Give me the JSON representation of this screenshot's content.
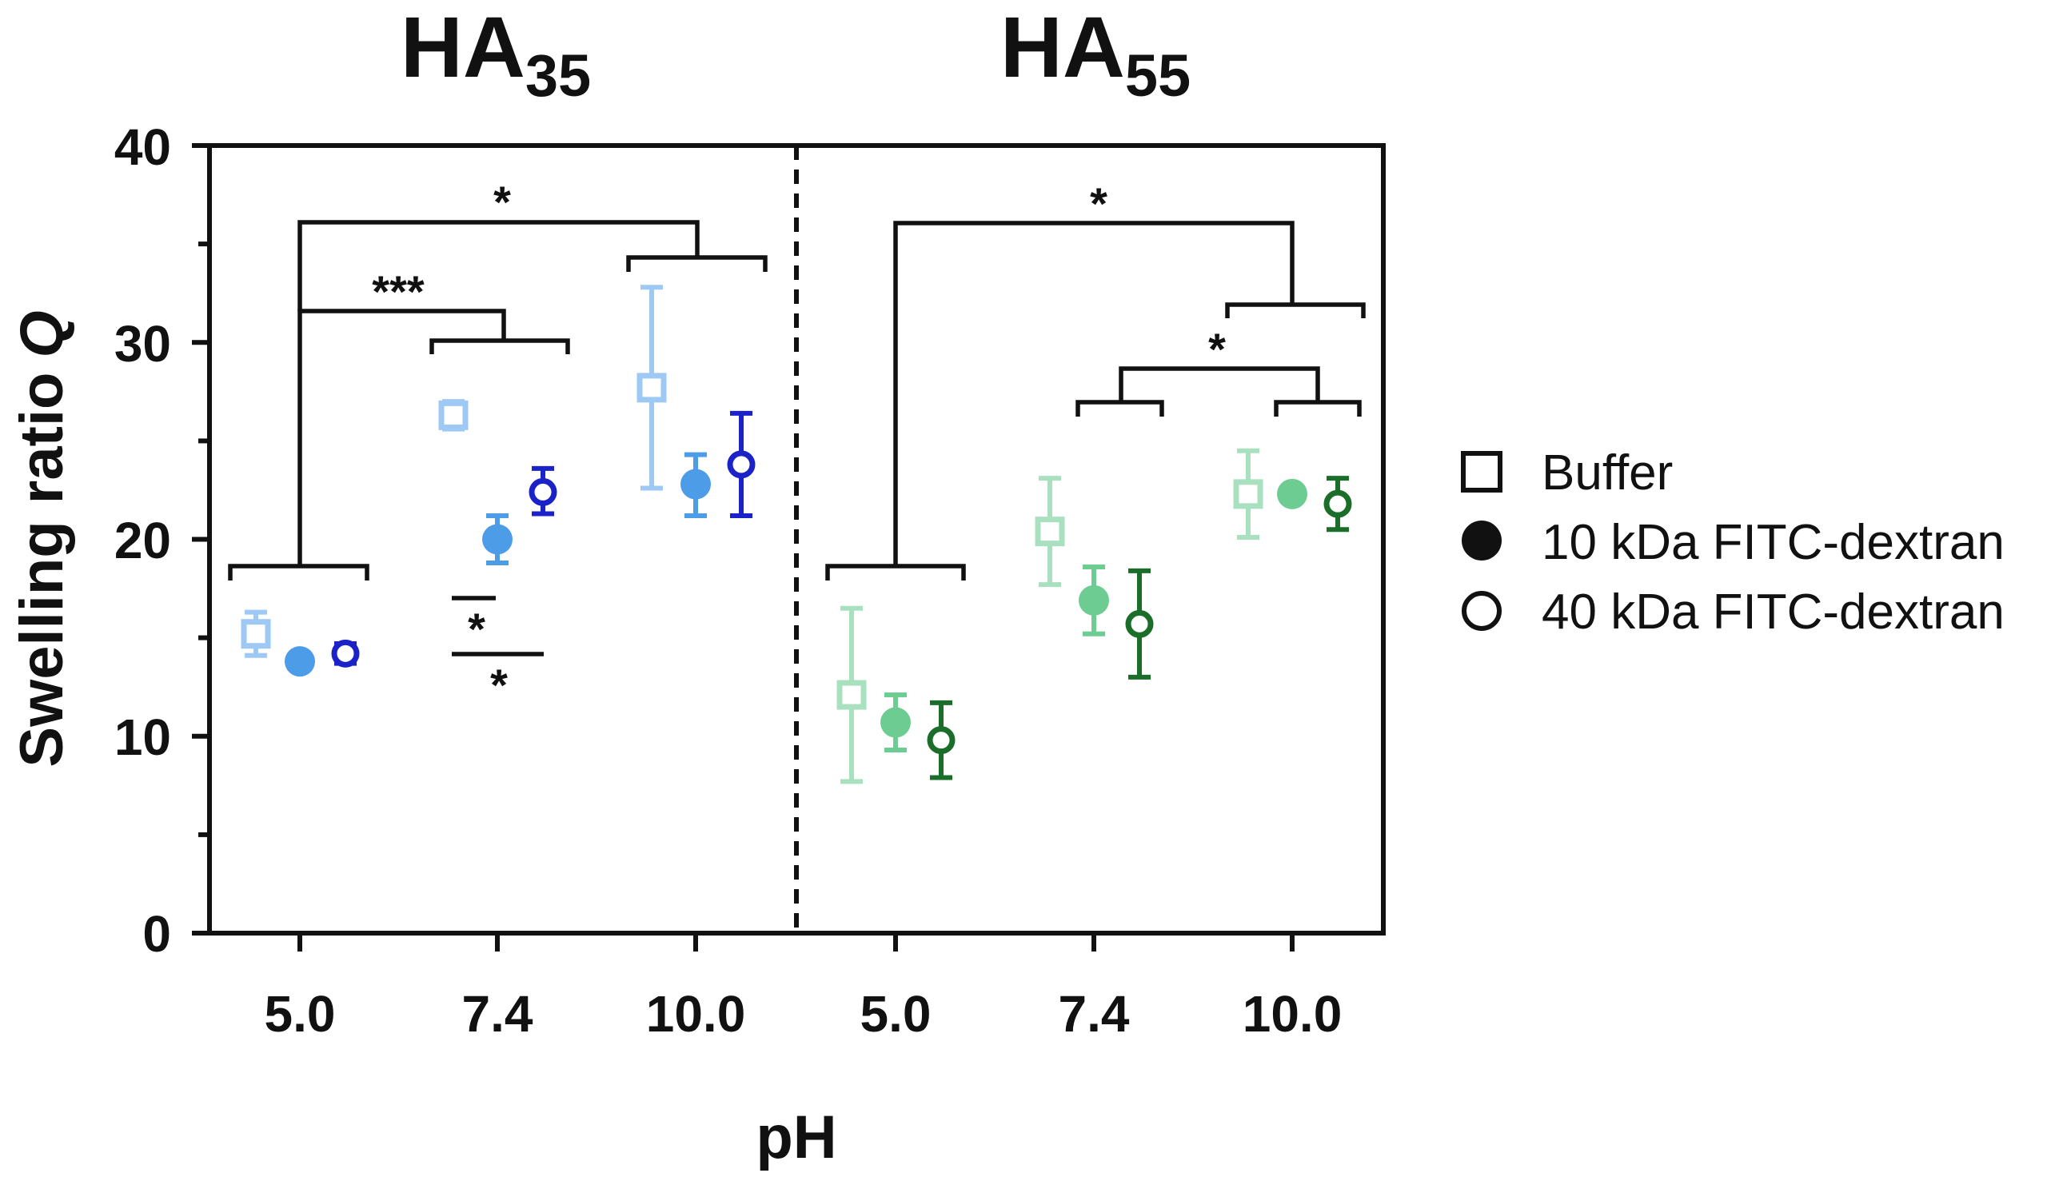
{
  "chart_data": {
    "type": "scatter",
    "ylabel": "Swelling ratio",
    "ylabel_var": "Q",
    "xlabel": "pH",
    "ylim": [
      0,
      40
    ],
    "y_ticks": [
      "0",
      "10",
      "20",
      "30",
      "40"
    ],
    "x_categories": [
      "5.0",
      "7.4",
      "10.0",
      "5.0",
      "7.4",
      "10.0"
    ],
    "panels": [
      {
        "title": "HA",
        "subscript": "35"
      },
      {
        "title": "HA",
        "subscript": "55"
      }
    ],
    "legend": {
      "placement": "right",
      "entries": [
        {
          "label": "Buffer",
          "marker": "open-square"
        },
        {
          "label": "10 kDa FITC-dextran",
          "marker": "filled-circle"
        },
        {
          "label": "40 kDa FITC-dextran",
          "marker": "open-circle"
        }
      ]
    },
    "series": [
      {
        "panel": "HA35",
        "pH": "5.0",
        "condition": "Buffer",
        "marker": "open-square",
        "color": "#9ec9f5",
        "mean": 15.2,
        "err_low": 14.1,
        "err_high": 16.3
      },
      {
        "panel": "HA35",
        "pH": "5.0",
        "condition": "10 kDa FITC-dextran",
        "marker": "filled-circle",
        "color": "#4d9ce8",
        "mean": 13.8,
        "err_low": 13.5,
        "err_high": 14.1
      },
      {
        "panel": "HA35",
        "pH": "5.0",
        "condition": "40 kDa FITC-dextran",
        "marker": "open-circle",
        "color": "#1a22c8",
        "mean": 14.2,
        "err_low": 13.7,
        "err_high": 14.7
      },
      {
        "panel": "HA35",
        "pH": "7.4",
        "condition": "Buffer",
        "marker": "open-square",
        "color": "#9ec9f5",
        "mean": 26.3,
        "err_low": 25.6,
        "err_high": 27.0
      },
      {
        "panel": "HA35",
        "pH": "7.4",
        "condition": "10 kDa FITC-dextran",
        "marker": "filled-circle",
        "color": "#4d9ce8",
        "mean": 20.0,
        "err_low": 18.8,
        "err_high": 21.2
      },
      {
        "panel": "HA35",
        "pH": "7.4",
        "condition": "40 kDa FITC-dextran",
        "marker": "open-circle",
        "color": "#1a22c8",
        "mean": 22.4,
        "err_low": 21.3,
        "err_high": 23.6
      },
      {
        "panel": "HA35",
        "pH": "10.0",
        "condition": "Buffer",
        "marker": "open-square",
        "color": "#9ec9f5",
        "mean": 27.7,
        "err_low": 22.6,
        "err_high": 32.8
      },
      {
        "panel": "HA35",
        "pH": "10.0",
        "condition": "10 kDa FITC-dextran",
        "marker": "filled-circle",
        "color": "#4d9ce8",
        "mean": 22.8,
        "err_low": 21.2,
        "err_high": 24.3
      },
      {
        "panel": "HA35",
        "pH": "10.0",
        "condition": "40 kDa FITC-dextran",
        "marker": "open-circle",
        "color": "#1a22c8",
        "mean": 23.8,
        "err_low": 21.2,
        "err_high": 26.4
      },
      {
        "panel": "HA55",
        "pH": "5.0",
        "condition": "Buffer",
        "marker": "open-square",
        "color": "#a9e0bf",
        "mean": 12.1,
        "err_low": 7.7,
        "err_high": 16.5
      },
      {
        "panel": "HA55",
        "pH": "5.0",
        "condition": "10 kDa FITC-dextran",
        "marker": "filled-circle",
        "color": "#6ccc91",
        "mean": 10.7,
        "err_low": 9.3,
        "err_high": 12.1
      },
      {
        "panel": "HA55",
        "pH": "5.0",
        "condition": "40 kDa FITC-dextran",
        "marker": "open-circle",
        "color": "#1a6e2a",
        "mean": 9.8,
        "err_low": 7.9,
        "err_high": 11.7
      },
      {
        "panel": "HA55",
        "pH": "7.4",
        "condition": "Buffer",
        "marker": "open-square",
        "color": "#a9e0bf",
        "mean": 20.4,
        "err_low": 17.7,
        "err_high": 23.1
      },
      {
        "panel": "HA55",
        "pH": "7.4",
        "condition": "10 kDa FITC-dextran",
        "marker": "filled-circle",
        "color": "#6ccc91",
        "mean": 16.9,
        "err_low": 15.2,
        "err_high": 18.6
      },
      {
        "panel": "HA55",
        "pH": "7.4",
        "condition": "40 kDa FITC-dextran",
        "marker": "open-circle",
        "color": "#1a6e2a",
        "mean": 15.7,
        "err_low": 13.0,
        "err_high": 18.4
      },
      {
        "panel": "HA55",
        "pH": "10.0",
        "condition": "Buffer",
        "marker": "open-square",
        "color": "#a9e0bf",
        "mean": 22.3,
        "err_low": 20.1,
        "err_high": 24.5
      },
      {
        "panel": "HA55",
        "pH": "10.0",
        "condition": "10 kDa FITC-dextran",
        "marker": "filled-circle",
        "color": "#6ccc91",
        "mean": 22.3,
        "err_low": 22.0,
        "err_high": 22.6
      },
      {
        "panel": "HA55",
        "pH": "10.0",
        "condition": "40 kDa FITC-dextran",
        "marker": "open-circle",
        "color": "#1a6e2a",
        "mean": 21.8,
        "err_low": 20.5,
        "err_high": 23.1
      }
    ],
    "significance": [
      {
        "panel": "HA35",
        "label": "*",
        "comparison": "pH 5.0 vs pH 10.0"
      },
      {
        "panel": "HA35",
        "label": "***",
        "comparison": "pH 5.0 vs pH 7.4"
      },
      {
        "panel": "HA35",
        "label": "*",
        "comparison": "pH 7.4: Buffer vs 10 kDa FITC-dextran"
      },
      {
        "panel": "HA35",
        "label": "*",
        "comparison": "pH 7.4: Buffer vs 40 kDa FITC-dextran"
      },
      {
        "panel": "HA55",
        "label": "*",
        "comparison": "pH 5.0 vs pH 7.4 + pH 10.0"
      },
      {
        "panel": "HA55",
        "label": "*",
        "comparison": "pH 7.4 vs pH 10.0"
      }
    ]
  }
}
